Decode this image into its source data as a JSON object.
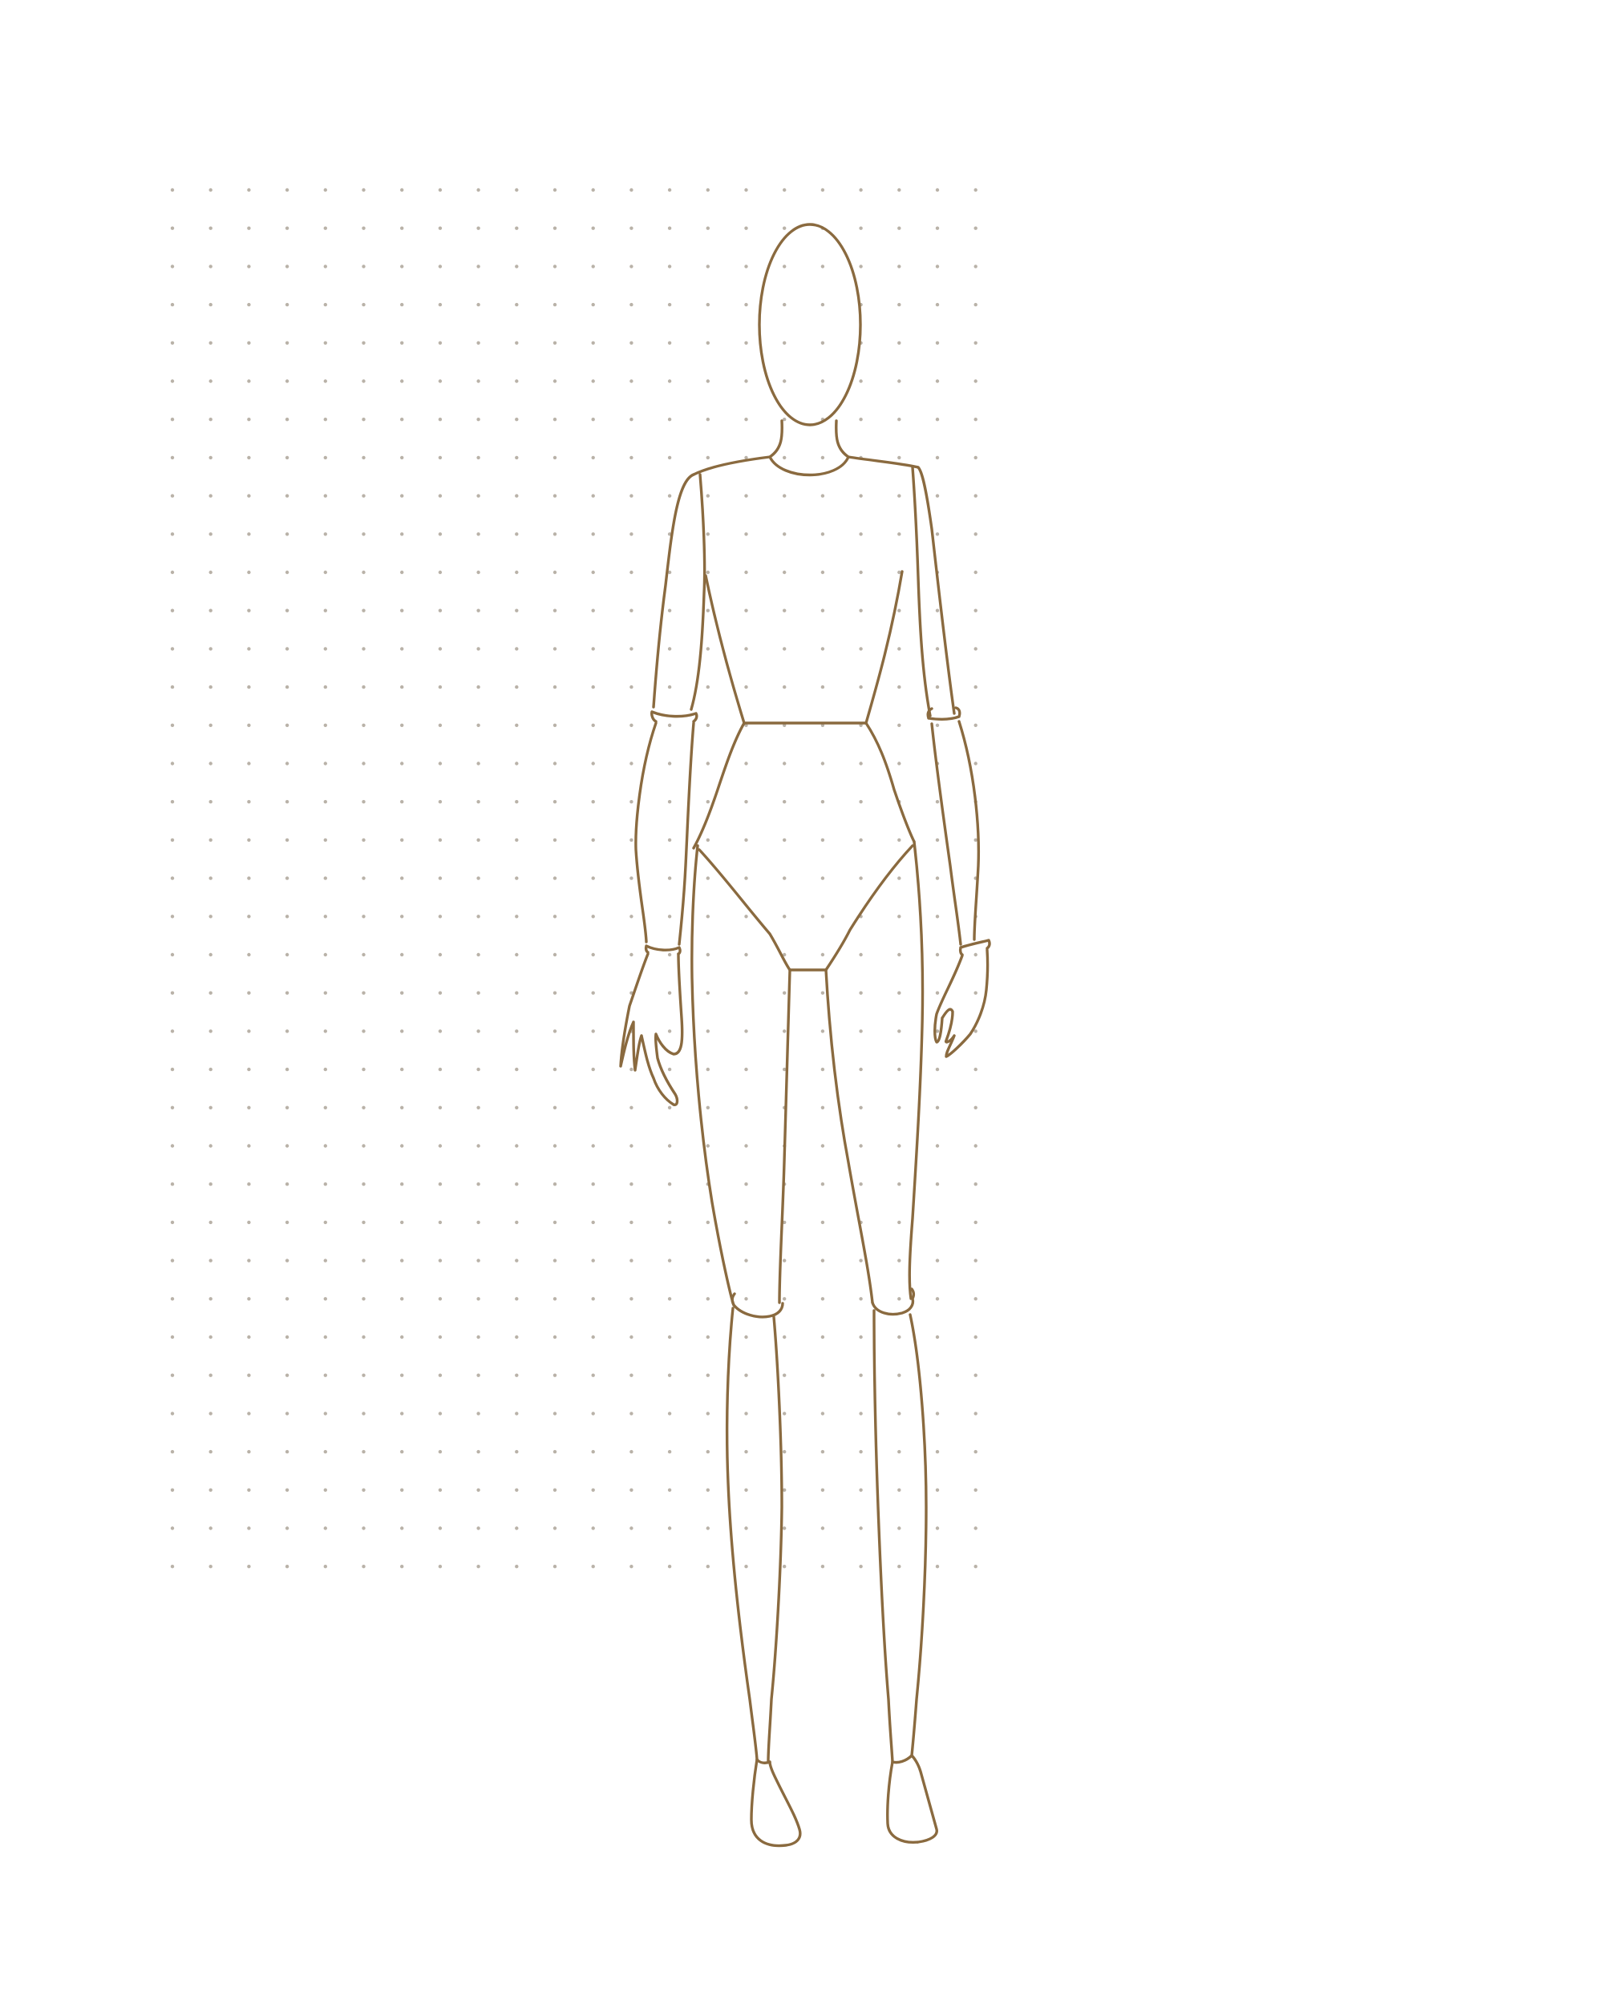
{
  "colors": {
    "background": "#ffffff",
    "line": "#8a6a3f",
    "dot": "#b9b2a8"
  },
  "figure": {
    "pose": "front",
    "style": "articulated-mannequin-croquis"
  },
  "grid": {
    "type": "dot-grid",
    "visible": true
  }
}
